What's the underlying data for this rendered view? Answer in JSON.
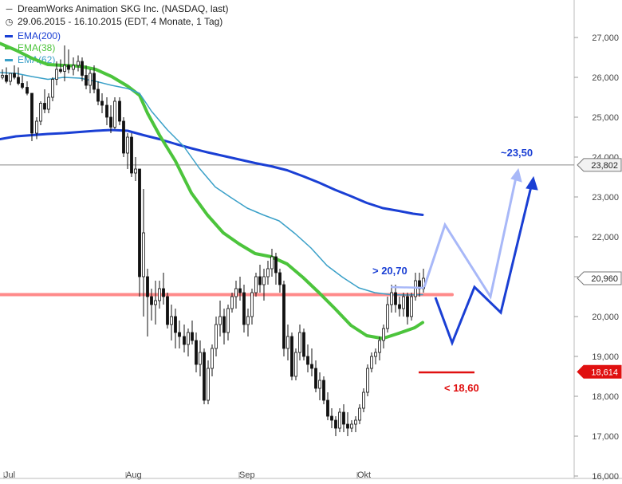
{
  "header": {
    "title": "DreamWorks Animation SKG Inc. (NASDAQ, last)",
    "subtitle": "29.06.2015 - 16.10.2015 (EDT, 4 Monate, 1 Tag)",
    "icons": {
      "title": "dash-icon",
      "subtitle": "clock-icon"
    }
  },
  "chart_data": {
    "type": "line",
    "title": "DreamWorks Animation SKG Inc. (NASDAQ, last)",
    "subtitle": "29.06.2015 - 16.10.2015 (EDT, 4 Monate, 1 Tag)",
    "x_ticks": [
      "Jul",
      "Aug",
      "Sep",
      "Okt"
    ],
    "y_ticks": [
      "27,000",
      "26,000",
      "25,000",
      "24,000",
      "23,000",
      "22,000",
      "21,000",
      "20,000",
      "19,000",
      "18,000",
      "17,000",
      "16,000"
    ],
    "ylim": [
      16,
      27.5
    ],
    "grid": false,
    "legend_position": "top-left",
    "colors": {
      "ema200": "#1a3fd4",
      "ema38": "#4cc43c",
      "ema62": "#3aa0c8",
      "candles": "#111111",
      "support": "#ff8a8a",
      "stop": "#e01010",
      "forecast_up": "#1a3fd4",
      "forecast_light": "#a8b8f8"
    },
    "series": [
      {
        "name": "EMA(200)",
        "color": "#1a3fd4",
        "points": [
          [
            0,
            24.45
          ],
          [
            20,
            24.52
          ],
          [
            40,
            24.55
          ],
          [
            60,
            24.58
          ],
          [
            80,
            24.6
          ],
          [
            100,
            24.63
          ],
          [
            120,
            24.66
          ],
          [
            140,
            24.68
          ],
          [
            160,
            24.66
          ],
          [
            180,
            24.55
          ],
          [
            200,
            24.45
          ],
          [
            220,
            24.33
          ],
          [
            240,
            24.22
          ],
          [
            260,
            24.12
          ],
          [
            280,
            24.03
          ],
          [
            300,
            23.94
          ],
          [
            320,
            23.85
          ],
          [
            340,
            23.77
          ],
          [
            360,
            23.67
          ],
          [
            380,
            23.52
          ],
          [
            400,
            23.36
          ],
          [
            420,
            23.18
          ],
          [
            440,
            23.02
          ],
          [
            460,
            22.85
          ],
          [
            480,
            22.72
          ],
          [
            500,
            22.65
          ],
          [
            518,
            22.58
          ],
          [
            530,
            22.55
          ]
        ]
      },
      {
        "name": "EMA(38)",
        "color": "#4cc43c",
        "points": [
          [
            0,
            26.85
          ],
          [
            20,
            26.68
          ],
          [
            40,
            26.48
          ],
          [
            60,
            26.32
          ],
          [
            80,
            26.3
          ],
          [
            100,
            26.28
          ],
          [
            120,
            26.2
          ],
          [
            140,
            26.02
          ],
          [
            160,
            25.78
          ],
          [
            175,
            25.55
          ],
          [
            185,
            25.1
          ],
          [
            200,
            24.55
          ],
          [
            220,
            23.9
          ],
          [
            240,
            23.1
          ],
          [
            260,
            22.55
          ],
          [
            280,
            22.1
          ],
          [
            300,
            21.82
          ],
          [
            320,
            21.58
          ],
          [
            340,
            21.5
          ],
          [
            360,
            21.32
          ],
          [
            380,
            20.98
          ],
          [
            400,
            20.6
          ],
          [
            420,
            20.2
          ],
          [
            440,
            19.78
          ],
          [
            460,
            19.52
          ],
          [
            480,
            19.45
          ],
          [
            500,
            19.58
          ],
          [
            520,
            19.72
          ],
          [
            530,
            19.85
          ]
        ]
      },
      {
        "name": "EMA(62)",
        "color": "#3aa0c8",
        "points": [
          [
            0,
            26.12
          ],
          [
            20,
            26.1
          ],
          [
            40,
            26.02
          ],
          [
            60,
            25.95
          ],
          [
            80,
            26.0
          ],
          [
            100,
            25.98
          ],
          [
            120,
            25.9
          ],
          [
            140,
            25.8
          ],
          [
            160,
            25.72
          ],
          [
            175,
            25.6
          ],
          [
            190,
            25.15
          ],
          [
            210,
            24.68
          ],
          [
            230,
            24.28
          ],
          [
            250,
            23.72
          ],
          [
            270,
            23.25
          ],
          [
            290,
            22.98
          ],
          [
            310,
            22.72
          ],
          [
            330,
            22.55
          ],
          [
            350,
            22.4
          ],
          [
            370,
            22.08
          ],
          [
            390,
            21.72
          ],
          [
            410,
            21.28
          ],
          [
            430,
            20.98
          ],
          [
            450,
            20.72
          ],
          [
            470,
            20.6
          ],
          [
            490,
            20.55
          ],
          [
            510,
            20.54
          ],
          [
            530,
            20.55
          ]
        ]
      }
    ],
    "candles": [
      [
        3,
        26.0,
        26.2,
        25.95,
        26.05
      ],
      [
        8,
        26.05,
        26.25,
        25.85,
        25.9
      ],
      [
        13,
        25.9,
        26.1,
        25.8,
        26.1
      ],
      [
        18,
        26.1,
        26.3,
        25.95,
        26.0
      ],
      [
        23,
        26.0,
        26.25,
        25.8,
        25.85
      ],
      [
        28,
        25.85,
        26.05,
        25.7,
        25.75
      ],
      [
        34,
        25.75,
        25.9,
        25.55,
        25.6
      ],
      [
        40,
        25.6,
        25.6,
        24.4,
        24.6
      ],
      [
        46,
        24.6,
        25.0,
        24.45,
        24.9
      ],
      [
        51,
        24.9,
        25.4,
        24.8,
        25.35
      ],
      [
        56,
        25.35,
        25.7,
        25.1,
        25.2
      ],
      [
        61,
        25.2,
        25.6,
        25.1,
        25.5
      ],
      [
        66,
        25.5,
        26.0,
        25.4,
        25.95
      ],
      [
        71,
        25.95,
        26.4,
        25.8,
        26.2
      ],
      [
        76,
        26.2,
        26.45,
        26.1,
        26.15
      ],
      [
        81,
        26.15,
        26.8,
        25.9,
        26.3
      ],
      [
        86,
        26.3,
        26.7,
        26.1,
        26.2
      ],
      [
        92,
        26.2,
        26.5,
        26.05,
        26.3
      ],
      [
        98,
        26.3,
        26.55,
        26.15,
        26.4
      ],
      [
        103,
        26.4,
        26.5,
        25.9,
        26.05
      ],
      [
        108,
        26.05,
        26.3,
        25.7,
        25.8
      ],
      [
        113,
        25.8,
        26.2,
        25.6,
        26.1
      ],
      [
        118,
        26.1,
        26.3,
        25.6,
        25.7
      ],
      [
        123,
        25.7,
        25.9,
        25.3,
        25.4
      ],
      [
        128,
        25.4,
        25.6,
        25.1,
        25.3
      ],
      [
        134,
        25.3,
        25.5,
        24.8,
        25.0
      ],
      [
        139,
        25.0,
        25.3,
        24.6,
        24.75
      ],
      [
        144,
        24.75,
        25.5,
        24.7,
        25.4
      ],
      [
        150,
        25.4,
        25.5,
        24.8,
        24.9
      ],
      [
        155,
        24.9,
        25.0,
        24.0,
        24.1
      ],
      [
        160,
        24.1,
        24.6,
        23.7,
        24.5
      ],
      [
        165,
        24.5,
        24.6,
        23.5,
        23.6
      ],
      [
        170,
        23.6,
        24.0,
        23.4,
        23.7
      ],
      [
        175,
        23.7,
        23.7,
        20.5,
        21.0
      ],
      [
        180,
        21.0,
        23.2,
        20.0,
        22.1
      ],
      [
        185,
        21.0,
        21.2,
        19.5,
        20.5
      ],
      [
        190,
        20.5,
        20.7,
        19.9,
        20.3
      ],
      [
        195,
        20.3,
        20.9,
        19.8,
        20.4
      ],
      [
        200,
        20.4,
        20.9,
        20.2,
        20.7
      ],
      [
        205,
        20.7,
        21.1,
        20.3,
        20.5
      ],
      [
        210,
        20.5,
        20.6,
        19.7,
        19.8
      ],
      [
        215,
        19.8,
        20.3,
        19.4,
        20.0
      ],
      [
        220,
        20.0,
        20.2,
        19.2,
        19.6
      ],
      [
        225,
        19.6,
        19.9,
        19.2,
        19.5
      ],
      [
        231,
        19.5,
        19.8,
        19.1,
        19.3
      ],
      [
        236,
        19.3,
        19.7,
        19.0,
        19.6
      ],
      [
        241,
        19.6,
        19.9,
        19.3,
        19.4
      ],
      [
        246,
        19.4,
        19.6,
        18.6,
        18.8
      ],
      [
        251,
        18.8,
        19.4,
        18.5,
        19.1
      ],
      [
        256,
        19.1,
        19.2,
        17.8,
        17.9
      ],
      [
        261,
        17.9,
        18.9,
        17.8,
        18.7
      ],
      [
        266,
        18.7,
        19.3,
        18.5,
        19.2
      ],
      [
        271,
        19.2,
        20.0,
        19.0,
        19.8
      ],
      [
        276,
        19.8,
        20.4,
        19.5,
        20.0
      ],
      [
        281,
        20.0,
        20.2,
        19.3,
        19.6
      ],
      [
        286,
        19.6,
        20.3,
        19.4,
        20.2
      ],
      [
        291,
        20.2,
        20.6,
        20.1,
        20.5
      ],
      [
        296,
        20.5,
        20.9,
        20.2,
        20.7
      ],
      [
        301,
        20.7,
        21.0,
        20.4,
        20.6
      ],
      [
        306,
        20.6,
        20.8,
        19.6,
        19.8
      ],
      [
        311,
        19.8,
        20.2,
        19.5,
        20.0
      ],
      [
        316,
        20.0,
        20.7,
        19.8,
        20.6
      ],
      [
        321,
        20.6,
        21.1,
        20.5,
        21.0
      ],
      [
        326,
        21.0,
        21.3,
        20.6,
        20.8
      ],
      [
        331,
        20.8,
        21.2,
        20.4,
        21.0
      ],
      [
        336,
        21.0,
        21.4,
        20.8,
        21.2
      ],
      [
        341,
        21.2,
        21.7,
        21.0,
        21.5
      ],
      [
        346,
        21.5,
        21.6,
        20.8,
        21.1
      ],
      [
        351,
        21.1,
        21.2,
        20.6,
        20.8
      ],
      [
        356,
        20.8,
        20.9,
        19.0,
        19.2
      ],
      [
        361,
        19.2,
        19.8,
        18.9,
        19.5
      ],
      [
        366,
        19.5,
        19.6,
        18.4,
        18.5
      ],
      [
        371,
        18.5,
        19.2,
        18.4,
        19.1
      ],
      [
        376,
        19.1,
        19.8,
        18.9,
        19.6
      ],
      [
        381,
        19.6,
        19.7,
        18.9,
        19.0
      ],
      [
        386,
        19.0,
        19.3,
        18.6,
        18.8
      ],
      [
        391,
        18.8,
        19.2,
        18.5,
        18.7
      ],
      [
        396,
        18.7,
        18.9,
        18.1,
        18.2
      ],
      [
        401,
        18.2,
        18.6,
        17.9,
        18.4
      ],
      [
        406,
        18.4,
        18.5,
        17.8,
        17.9
      ],
      [
        411,
        17.9,
        18.1,
        17.4,
        17.5
      ],
      [
        416,
        17.5,
        17.7,
        17.2,
        17.4
      ],
      [
        421,
        17.4,
        17.5,
        17.0,
        17.2
      ],
      [
        426,
        17.2,
        17.7,
        17.1,
        17.6
      ],
      [
        431,
        17.6,
        17.8,
        17.1,
        17.3
      ],
      [
        436,
        17.3,
        17.6,
        17.0,
        17.2
      ],
      [
        441,
        17.2,
        17.4,
        17.1,
        17.3
      ],
      [
        446,
        17.3,
        17.5,
        17.1,
        17.4
      ],
      [
        451,
        17.4,
        17.8,
        17.3,
        17.7
      ],
      [
        456,
        17.7,
        18.2,
        17.6,
        18.1
      ],
      [
        461,
        18.1,
        18.8,
        18.0,
        18.7
      ],
      [
        466,
        18.7,
        19.1,
        18.6,
        19.0
      ],
      [
        471,
        19.0,
        19.2,
        18.8,
        19.1
      ],
      [
        476,
        19.1,
        19.5,
        18.9,
        19.4
      ],
      [
        481,
        19.4,
        19.8,
        19.2,
        19.7
      ],
      [
        486,
        19.7,
        20.5,
        19.6,
        20.3
      ],
      [
        491,
        20.3,
        20.8,
        20.1,
        20.6
      ],
      [
        496,
        20.6,
        20.8,
        20.1,
        20.3
      ],
      [
        501,
        20.3,
        20.5,
        20.0,
        20.2
      ],
      [
        506,
        20.2,
        20.6,
        20.0,
        20.5
      ],
      [
        511,
        20.5,
        20.6,
        19.8,
        20.0
      ],
      [
        516,
        20.0,
        20.6,
        19.9,
        20.5
      ],
      [
        521,
        20.5,
        21.1,
        20.4,
        20.9
      ],
      [
        526,
        20.9,
        21.1,
        20.5,
        20.7
      ],
      [
        531,
        20.7,
        21.2,
        20.6,
        20.96
      ]
    ],
    "reference_lines": [
      {
        "label": "23,802",
        "value": 23.802,
        "color": "#888888"
      },
      {
        "label": "20,960",
        "value": 20.96,
        "color": "#ffffff"
      },
      {
        "label": "18,614",
        "value": 18.614,
        "color": "#e01010"
      }
    ],
    "annotations": [
      {
        "text": "> 20,70",
        "color": "#1a3fd4"
      },
      {
        "text": "< 18,60",
        "color": "#e01010"
      },
      {
        "text": "~23,50",
        "color": "#1a3fd4"
      }
    ]
  }
}
